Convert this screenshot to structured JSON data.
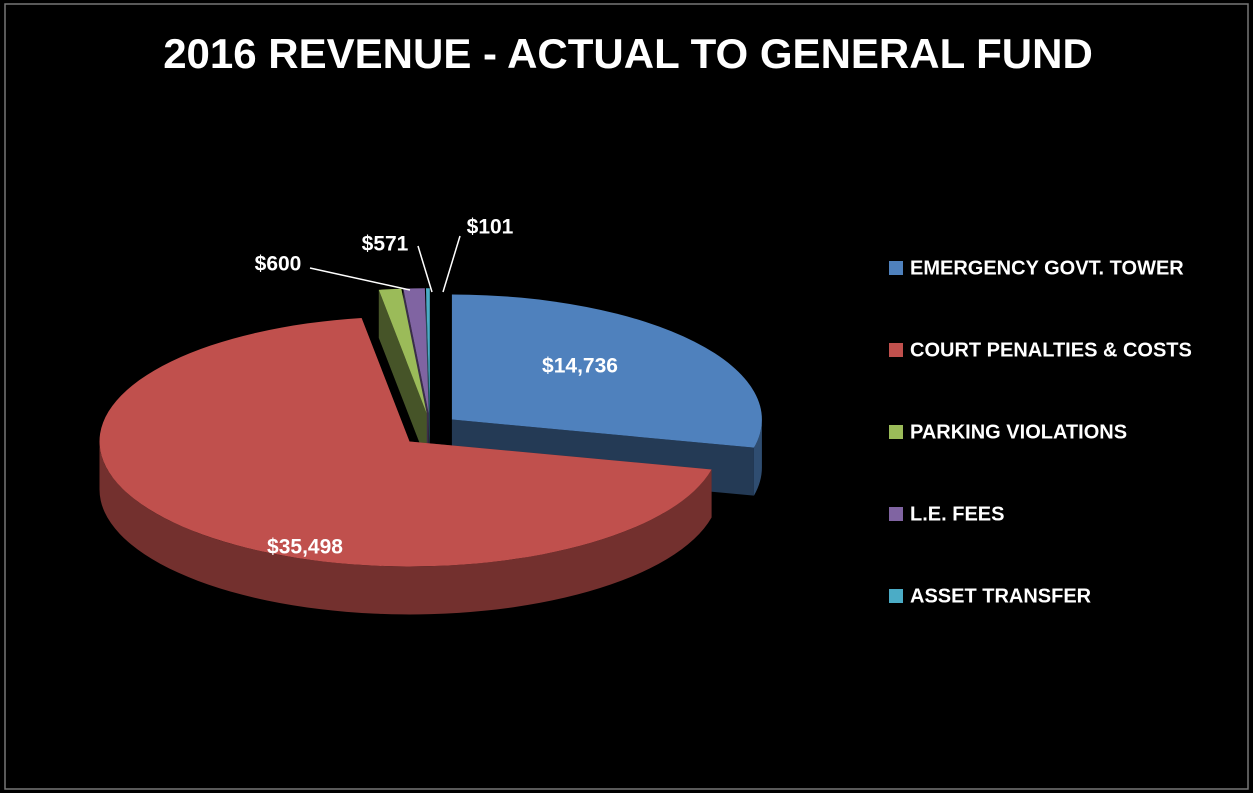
{
  "chart_data": {
    "type": "pie",
    "title": "2016 REVENUE - ACTUAL TO GENERAL FUND",
    "categories": [
      "EMERGENCY GOVT. TOWER",
      "COURT PENALTIES & COSTS",
      "PARKING VIOLATIONS",
      "L.E. FEES",
      "ASSET TRANSFER"
    ],
    "values": [
      14736,
      35498,
      600,
      571,
      101
    ],
    "value_labels": [
      "$14,736",
      "$35,498",
      "$600",
      "$571",
      "$101"
    ],
    "colors": [
      "#4f81bd",
      "#c0504d",
      "#9bbb59",
      "#8064a2",
      "#4bacc6"
    ],
    "legend": "right"
  }
}
